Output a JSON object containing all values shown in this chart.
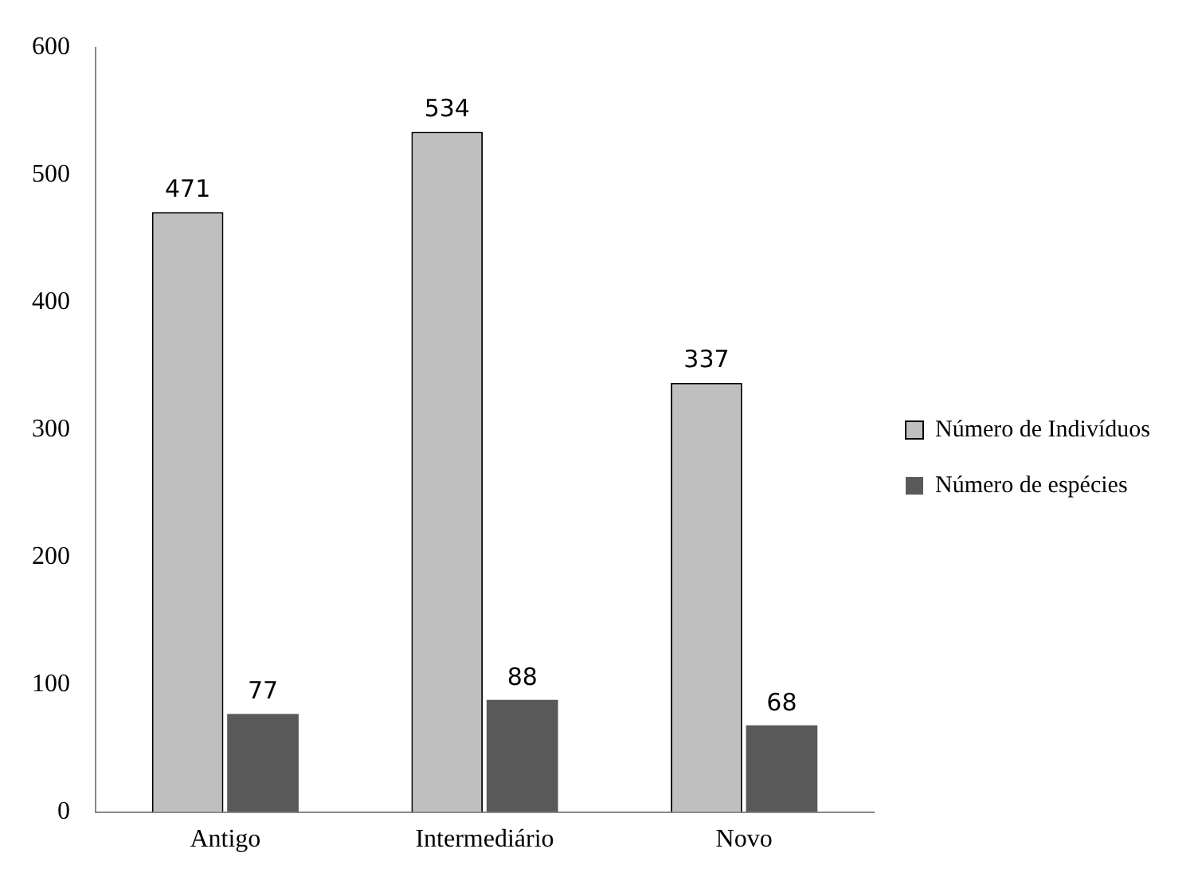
{
  "chart_data": {
    "type": "bar",
    "categories": [
      "Antigo",
      "Intermediário",
      "Novo"
    ],
    "series": [
      {
        "name": "Número de Indivíduos",
        "color": "#bfbfbf",
        "values": [
          471,
          534,
          337
        ]
      },
      {
        "name": "Número de espécies",
        "color": "#595959",
        "values": [
          77,
          88,
          68
        ]
      }
    ],
    "ylim": [
      0,
      600
    ],
    "yticks": [
      0,
      100,
      200,
      300,
      400,
      500,
      600
    ],
    "grid": false,
    "legend": "right",
    "data_labels": true
  }
}
